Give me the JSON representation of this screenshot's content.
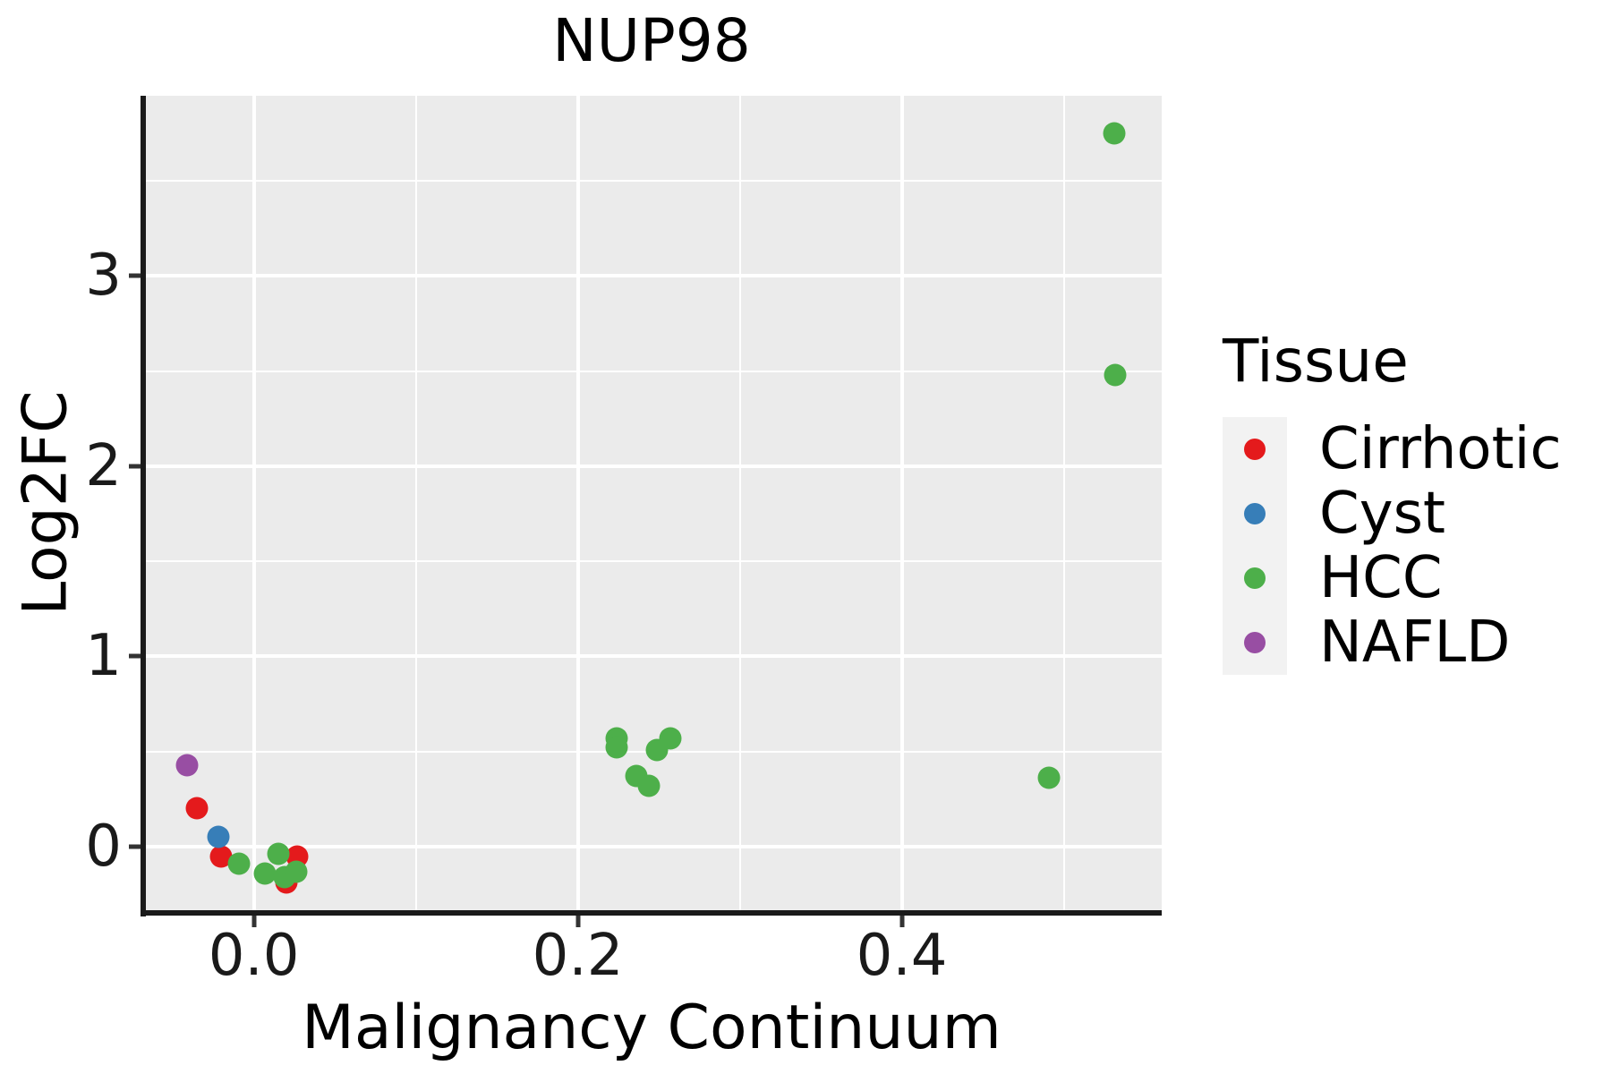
{
  "chart_data": {
    "type": "scatter",
    "title": "NUP98",
    "xlabel": "Malignancy Continuum",
    "ylabel": "Log2FC",
    "legend_title": "Tissue",
    "legend_position": "right",
    "grid": "major and minor white gridlines on gray panel",
    "panel_color": "#EBEBEB",
    "legend_key_color": "#F2F2F2",
    "xlim": [
      -0.0694,
      0.5605
    ],
    "ylim": [
      -0.339,
      3.948
    ],
    "x_ticks": [
      {
        "value": 0.0,
        "label": "0.0"
      },
      {
        "value": 0.2,
        "label": "0.2"
      },
      {
        "value": 0.4,
        "label": "0.4"
      }
    ],
    "y_ticks": [
      {
        "value": 0,
        "label": "0"
      },
      {
        "value": 1,
        "label": "1"
      },
      {
        "value": 2,
        "label": "2"
      },
      {
        "value": 3,
        "label": "3"
      }
    ],
    "x_minor_ticks": [
      0.1,
      0.3,
      0.5
    ],
    "y_minor_ticks": [
      0.5,
      1.5,
      2.5,
      3.5
    ],
    "series": [
      {
        "name": "Cirrhotic",
        "color": "#E41A1C",
        "points": [
          {
            "x": -0.035,
            "y": 0.2
          },
          {
            "x": -0.02,
            "y": -0.05
          },
          {
            "x": 0.027,
            "y": -0.05
          },
          {
            "x": 0.02,
            "y": -0.19
          }
        ]
      },
      {
        "name": "Cyst",
        "color": "#377EB8",
        "points": [
          {
            "x": -0.022,
            "y": 0.05
          }
        ]
      },
      {
        "name": "HCC",
        "color": "#4DAF4A",
        "points": [
          {
            "x": -0.009,
            "y": -0.09
          },
          {
            "x": 0.015,
            "y": -0.04
          },
          {
            "x": 0.007,
            "y": -0.14
          },
          {
            "x": 0.019,
            "y": -0.16
          },
          {
            "x": 0.026,
            "y": -0.13
          },
          {
            "x": 0.224,
            "y": 0.57
          },
          {
            "x": 0.224,
            "y": 0.52
          },
          {
            "x": 0.249,
            "y": 0.51
          },
          {
            "x": 0.257,
            "y": 0.57
          },
          {
            "x": 0.236,
            "y": 0.37
          },
          {
            "x": 0.244,
            "y": 0.32
          },
          {
            "x": 0.491,
            "y": 0.36
          },
          {
            "x": 0.532,
            "y": 2.48
          },
          {
            "x": 0.531,
            "y": 3.75
          }
        ]
      },
      {
        "name": "NAFLD",
        "color": "#984EA3",
        "points": [
          {
            "x": -0.041,
            "y": 0.43
          }
        ]
      }
    ],
    "render_order": [
      "Cirrhotic",
      "NAFLD",
      "Cyst",
      "HCC"
    ]
  }
}
